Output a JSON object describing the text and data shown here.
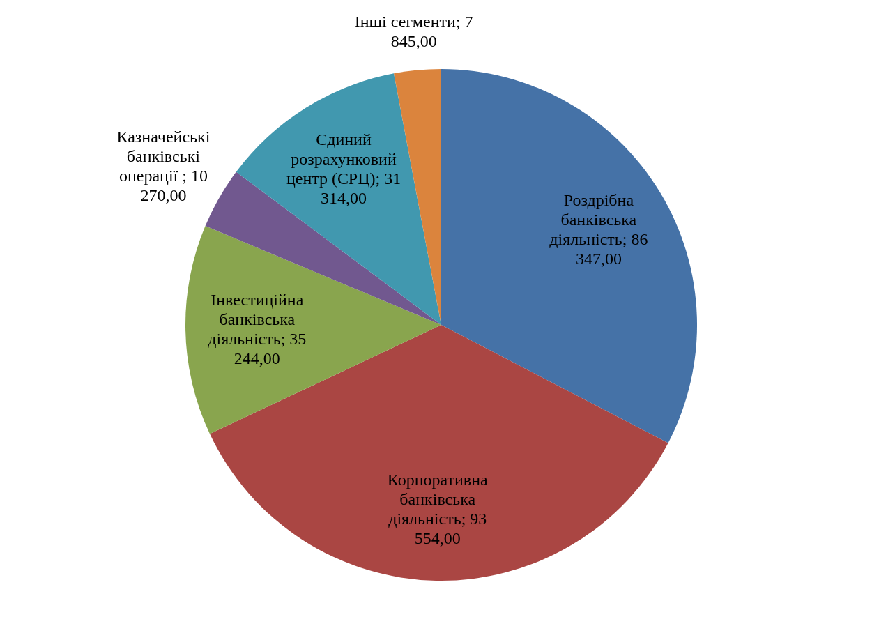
{
  "chart_data": {
    "type": "pie",
    "categories": [
      "Роздрібна банківська діяльність",
      "Корпоративна банківська діяльність",
      "Інвестиційна банківська діяльність",
      "Казначейські банківські операції ",
      "Єдиний розрахунковий центр (ЄРЦ)",
      "Інші сегменти"
    ],
    "values": [
      86347,
      93554,
      35244,
      10270,
      31314,
      7845
    ],
    "value_labels": [
      "86 347,00",
      "93 554,00",
      "35 244,00",
      "10 270,00",
      "31 314,00",
      "7 845,00"
    ],
    "colors": [
      "#4572a7",
      "#aa4643",
      "#89a54e",
      "#71588f",
      "#4198af",
      "#db843d"
    ]
  }
}
